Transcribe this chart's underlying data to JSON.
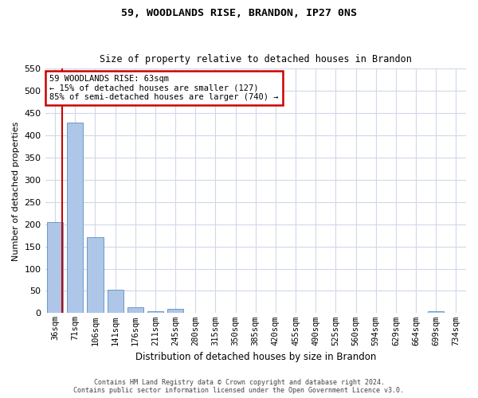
{
  "title": "59, WOODLANDS RISE, BRANDON, IP27 0NS",
  "subtitle": "Size of property relative to detached houses in Brandon",
  "xlabel": "Distribution of detached houses by size in Brandon",
  "ylabel": "Number of detached properties",
  "categories": [
    "36sqm",
    "71sqm",
    "106sqm",
    "141sqm",
    "176sqm",
    "211sqm",
    "245sqm",
    "280sqm",
    "315sqm",
    "350sqm",
    "385sqm",
    "420sqm",
    "455sqm",
    "490sqm",
    "525sqm",
    "560sqm",
    "594sqm",
    "629sqm",
    "664sqm",
    "699sqm",
    "734sqm"
  ],
  "values": [
    205,
    428,
    170,
    53,
    13,
    5,
    10,
    0,
    0,
    0,
    0,
    0,
    0,
    0,
    0,
    0,
    0,
    0,
    0,
    5,
    0
  ],
  "bar_color": "#aec6e8",
  "bar_edgecolor": "#5a8fc0",
  "grid_color": "#d0d8e8",
  "background_color": "#ffffff",
  "property_line_color": "#cc0000",
  "property_line_x": 0.35,
  "annotation_text": "59 WOODLANDS RISE: 63sqm\n← 15% of detached houses are smaller (127)\n85% of semi-detached houses are larger (740) →",
  "annotation_box_color": "#cc0000",
  "ylim": [
    0,
    550
  ],
  "yticks": [
    0,
    50,
    100,
    150,
    200,
    250,
    300,
    350,
    400,
    450,
    500,
    550
  ],
  "footer_line1": "Contains HM Land Registry data © Crown copyright and database right 2024.",
  "footer_line2": "Contains public sector information licensed under the Open Government Licence v3.0."
}
